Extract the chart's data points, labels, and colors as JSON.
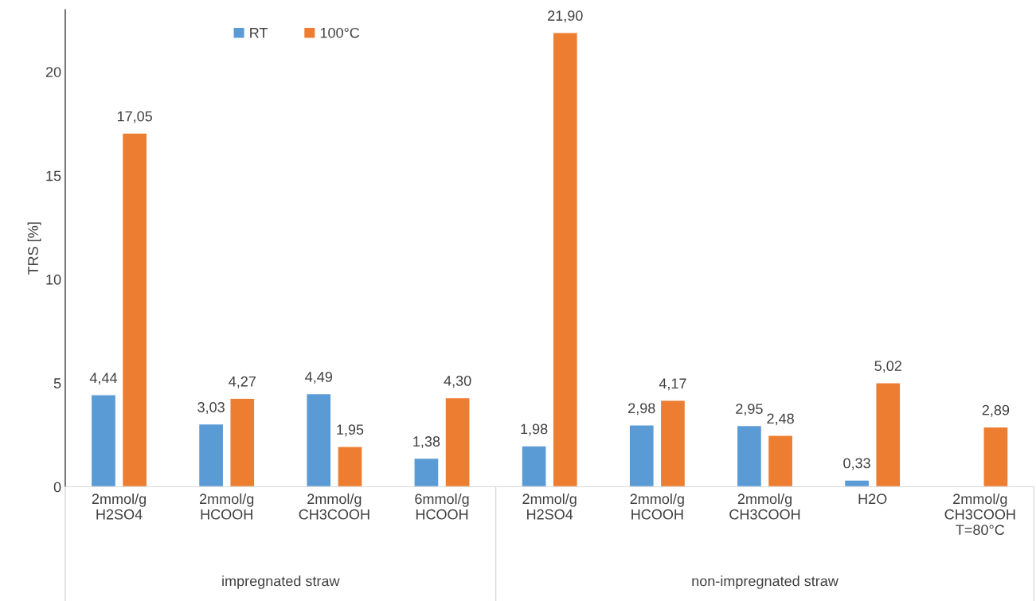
{
  "chart_data": {
    "type": "bar",
    "ylabel": "TRS [%]",
    "categories": [
      "2mmol/g\nH2SO4",
      "2mmol/g\nHCOOH",
      "2mmol/g\nCH3COOH",
      "6mmol/g\nHCOOH",
      "2mmol/g\nH2SO4",
      "2mmol/g\nHCOOH",
      "2mmol/g\nCH3COOH",
      "H2O",
      "2mmol/g\nCH3COOH\nT=80°C"
    ],
    "series": [
      {
        "name": "RT",
        "color": "#5b9bd5",
        "values": [
          4.44,
          3.03,
          4.49,
          1.38,
          1.98,
          2.98,
          2.95,
          0.33,
          null
        ],
        "value_labels": [
          "4,44",
          "3,03",
          "4,49",
          "1,38",
          "1,98",
          "2,98",
          "2,95",
          "0,33",
          null
        ]
      },
      {
        "name": "100°C",
        "color": "#ed7d31",
        "values": [
          17.05,
          4.27,
          1.95,
          4.3,
          21.9,
          4.17,
          2.48,
          5.02,
          2.89
        ],
        "value_labels": [
          "17,05",
          "4,27",
          "1,95",
          "4,30",
          "21,90",
          "4,17",
          "2,48",
          "5,02",
          "2,89"
        ]
      }
    ],
    "ylim": [
      0,
      23
    ],
    "yticks": [
      0,
      5,
      10,
      15,
      20
    ],
    "grid": false,
    "legend": "top left",
    "annotations": [
      "impregnated straw",
      "non-impregnated straw"
    ]
  }
}
